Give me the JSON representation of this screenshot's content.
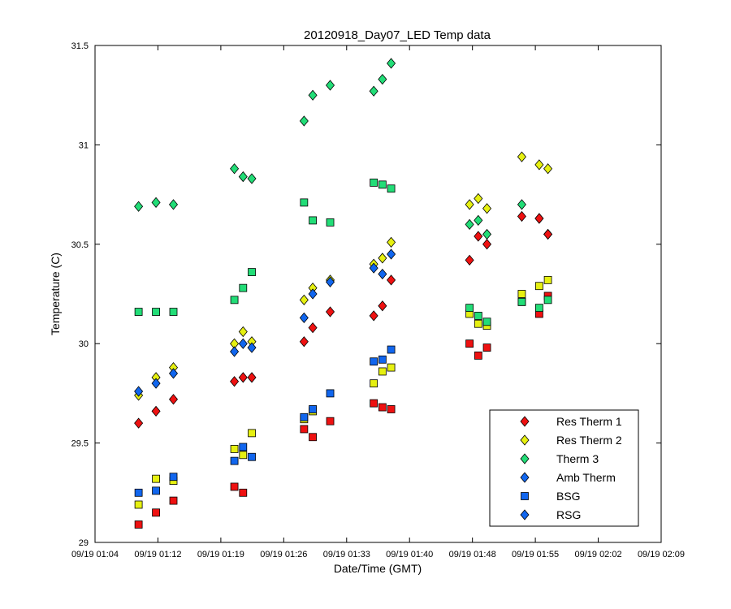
{
  "chart_data": {
    "type": "scatter",
    "title": "20120918_Day07_LED Temp data",
    "xlabel": "Date/Time (GMT)",
    "ylabel": "Temperature (C)",
    "ylim": [
      29,
      31.5
    ],
    "yticks": [
      "29",
      "29.5",
      "30",
      "30.5",
      "31",
      "31.5"
    ],
    "xlim_minutes": [
      0,
      65
    ],
    "xtick_labels": [
      "09/19 01:04",
      "09/19 01:12",
      "09/19 01:19",
      "09/19 01:26",
      "09/19 01:33",
      "09/19 01:40",
      "09/19 01:48",
      "09/19 01:55",
      "09/19 02:02",
      "09/19 02:09"
    ],
    "x_unit": "time (GMT) on 09/19",
    "grid": false,
    "legend_position": "bottom-right",
    "x": [
      "01:09",
      "01:11",
      "01:13",
      "01:20",
      "01:21",
      "01:22",
      "01:28",
      "01:29",
      "01:31",
      "01:36",
      "01:37",
      "01:38",
      "01:47",
      "01:48",
      "01:49",
      "01:53",
      "01:55",
      "01:56"
    ],
    "series": [
      {
        "name": "Res Therm 1",
        "marker": "diamond",
        "color": "#ee1111",
        "values": [
          29.6,
          29.66,
          29.72,
          29.81,
          29.83,
          29.83,
          30.01,
          30.08,
          30.16,
          30.14,
          30.19,
          30.32,
          30.42,
          30.54,
          30.5,
          30.64,
          30.63,
          30.55
        ]
      },
      {
        "name": "Res Therm 2",
        "marker": "diamond",
        "color": "#e6f011",
        "values": [
          29.74,
          29.83,
          29.88,
          30.0,
          30.06,
          30.01,
          30.22,
          30.28,
          30.32,
          30.4,
          30.43,
          30.51,
          30.7,
          30.73,
          30.68,
          30.94,
          30.9,
          30.88
        ]
      },
      {
        "name": "Therm 3",
        "marker": "diamond",
        "color": "#22dd77",
        "values": [
          30.69,
          30.71,
          30.7,
          30.88,
          30.84,
          30.83,
          31.12,
          31.25,
          31.3,
          31.27,
          31.33,
          31.41,
          30.6,
          30.62,
          30.55,
          30.7,
          30.63,
          30.55
        ]
      },
      {
        "name": "Amb Therm",
        "marker": "diamond",
        "color": "#1166ee",
        "values": [
          29.76,
          29.8,
          29.85,
          29.96,
          30.0,
          29.98,
          30.13,
          30.25,
          30.31,
          30.38,
          30.35,
          30.45
        ]
      },
      {
        "name": "BSG",
        "marker": "square",
        "color": "#1166ee",
        "values": [
          29.25,
          29.26,
          29.33,
          29.41,
          29.48,
          29.43,
          29.63,
          29.67,
          29.75,
          29.91,
          29.92,
          29.97
        ]
      },
      {
        "name": "RSG",
        "marker": "diamond",
        "color": "#1166ee",
        "values": []
      }
    ],
    "unlabeled_series": [
      {
        "marker": "square",
        "color": "#ee1111",
        "values": [
          29.09,
          29.15,
          29.21,
          29.28,
          29.25,
          null,
          29.57,
          29.53,
          29.61,
          29.7,
          29.68,
          29.67,
          30.0,
          29.94,
          29.98,
          30.21,
          30.15,
          30.24
        ]
      },
      {
        "marker": "square",
        "color": "#e6f011",
        "values": [
          29.19,
          29.32,
          29.31,
          29.47,
          29.44,
          29.55,
          29.62,
          29.66,
          null,
          29.8,
          29.86,
          29.88,
          30.15,
          30.1,
          30.09,
          30.25,
          30.29,
          30.32
        ]
      },
      {
        "marker": "square",
        "color": "#22dd77",
        "values": [
          30.16,
          30.16,
          30.16,
          30.22,
          30.28,
          30.36,
          30.71,
          30.62,
          30.61,
          30.81,
          30.8,
          30.78,
          30.18,
          30.14,
          30.11,
          30.21,
          30.18,
          30.22
        ]
      }
    ]
  }
}
